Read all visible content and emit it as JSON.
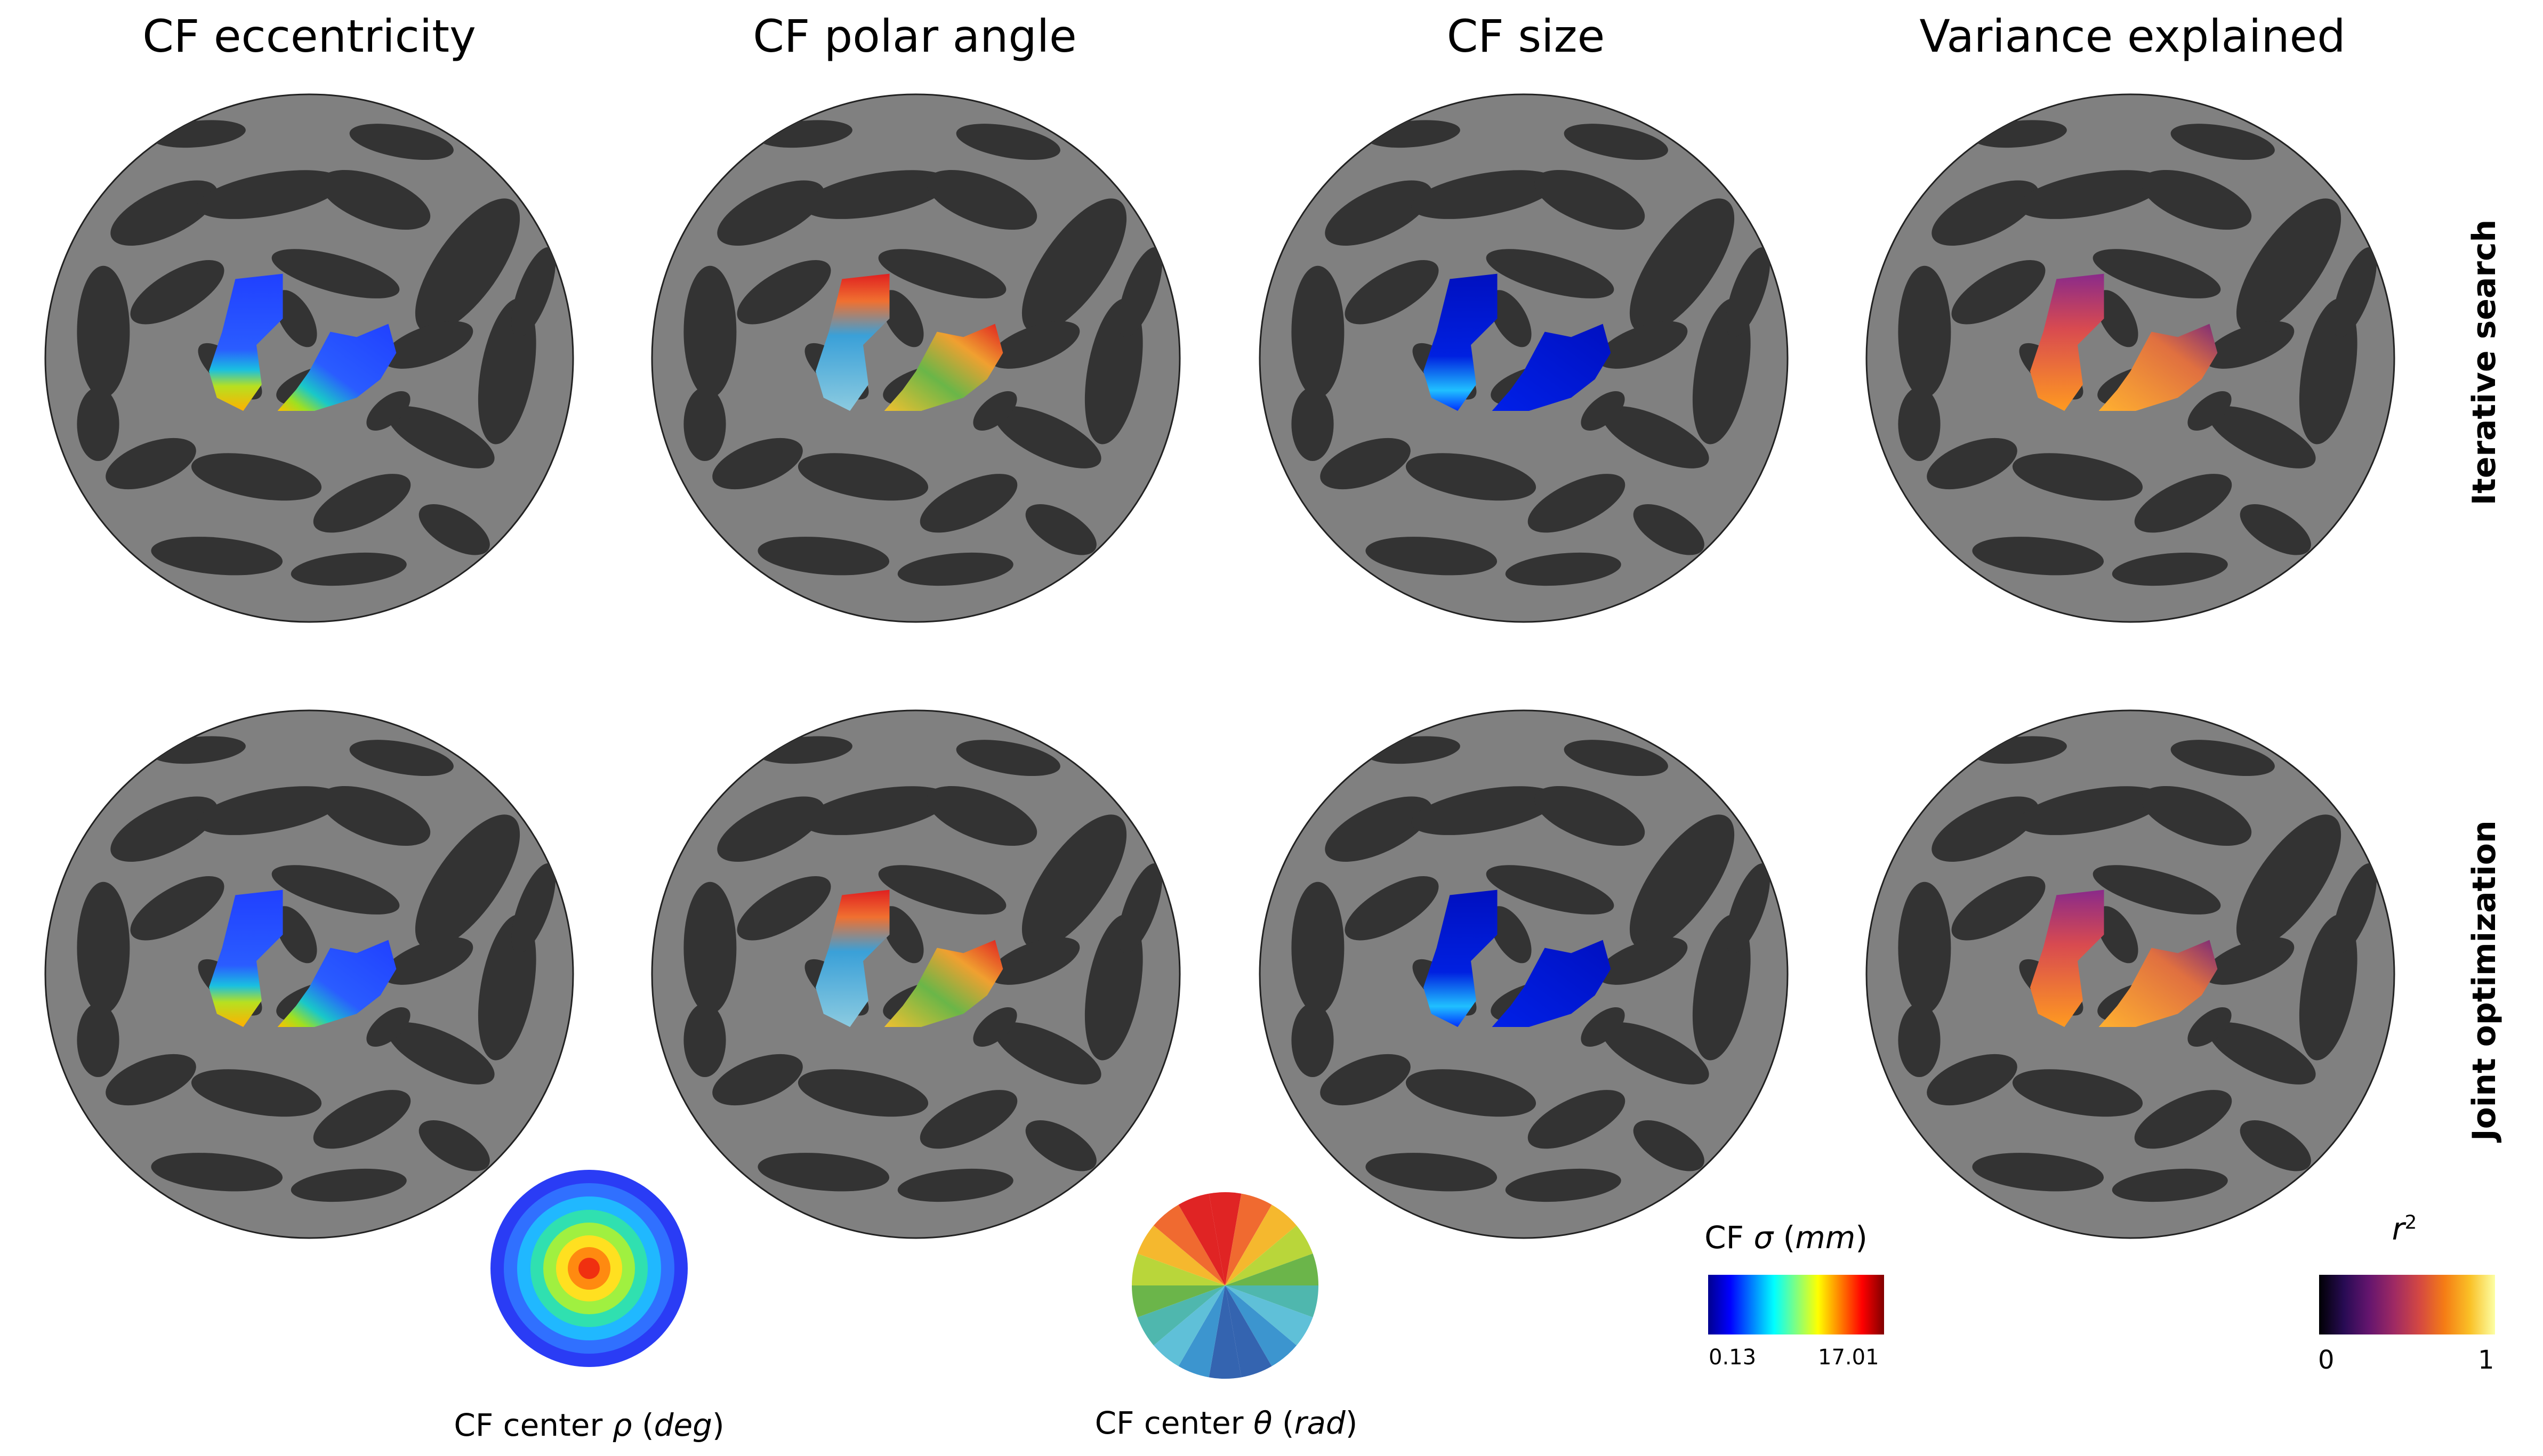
{
  "columns": [
    {
      "title": "CF eccentricity"
    },
    {
      "title": "CF polar angle"
    },
    {
      "title": "CF size"
    },
    {
      "title": "Variance explained"
    }
  ],
  "rows": [
    {
      "label": "Iterative search"
    },
    {
      "label": "Joint optimization"
    }
  ],
  "legends": {
    "eccentricity": {
      "prefix": "CF center ",
      "symbol": "ρ",
      "open": " (",
      "unit": "deg",
      "close": ")"
    },
    "polar_angle": {
      "prefix": "CF center ",
      "symbol": "θ",
      "open": " (",
      "unit": "rad",
      "close": ")"
    },
    "size": {
      "prefix": "CF ",
      "symbol": "σ",
      "open": " (",
      "unit": "mm",
      "close": ")",
      "min": "0.13",
      "max": "17.01"
    },
    "variance": {
      "symbol": "r",
      "sup": "2",
      "min": "0",
      "max": "1"
    }
  },
  "colors": {
    "brain_dark": "#333333",
    "brain_light": "#808080"
  }
}
